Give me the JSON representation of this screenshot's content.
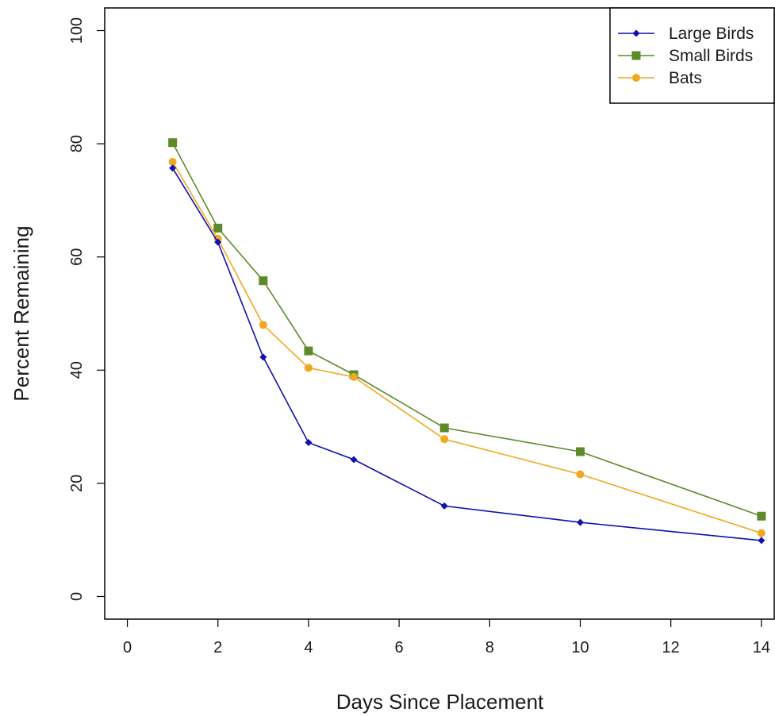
{
  "chart_data": {
    "type": "line",
    "title": "",
    "xlabel": "Days Since Placement",
    "ylabel": "Percent Remaining",
    "xlim": [
      -0.5,
      14.3
    ],
    "ylim": [
      -4,
      104
    ],
    "x_ticks": [
      0,
      2,
      4,
      6,
      8,
      10,
      12,
      14
    ],
    "y_ticks": [
      0,
      20,
      40,
      60,
      80,
      100
    ],
    "grid": false,
    "legend_position": "top-right",
    "series": [
      {
        "name": "Large Birds",
        "color": "#1010b0",
        "marker": "diamond",
        "x": [
          1,
          2,
          3,
          4,
          5,
          7,
          10,
          14
        ],
        "y": [
          75.7,
          62.6,
          42.3,
          27.2,
          24.2,
          16.0,
          13.1,
          9.9
        ]
      },
      {
        "name": "Small Birds",
        "color": "#5f8a2a",
        "marker": "square",
        "x": [
          1,
          2,
          3,
          4,
          5,
          7,
          10,
          14
        ],
        "y": [
          80.2,
          65.1,
          55.8,
          43.4,
          39.2,
          29.8,
          25.6,
          14.2
        ]
      },
      {
        "name": "Bats",
        "color": "#f0a820",
        "marker": "circle",
        "x": [
          1,
          2,
          3,
          4,
          5,
          7,
          10,
          14
        ],
        "y": [
          76.8,
          63.2,
          48.0,
          40.4,
          38.8,
          27.8,
          21.6,
          11.2
        ]
      }
    ]
  }
}
